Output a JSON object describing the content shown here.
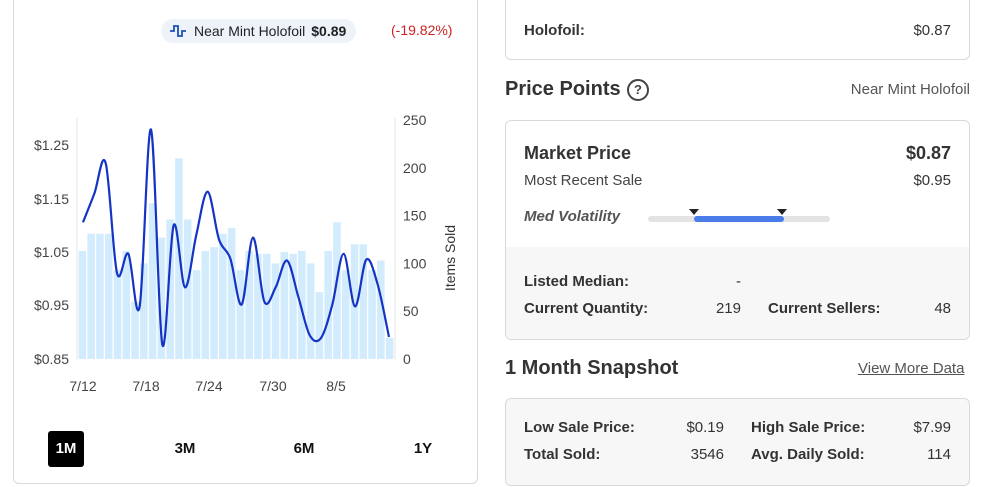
{
  "chart": {
    "legend_label": "Near Mint Holofoil",
    "legend_price": "$0.89",
    "change": "(-19.82%)",
    "range_buttons": [
      "1M",
      "3M",
      "6M",
      "1Y"
    ],
    "active_range": "1M"
  },
  "chart_data": {
    "type": "line",
    "x_tick_labels": [
      "7/12",
      "7/18",
      "7/24",
      "7/30",
      "8/5"
    ],
    "y_left_ticks": [
      "$1.25",
      "$1.15",
      "$1.05",
      "$0.95",
      "$0.85"
    ],
    "y_left_range": [
      0.85,
      1.25
    ],
    "y_right_ticks": [
      "250",
      "200",
      "150",
      "100",
      "50",
      "0"
    ],
    "y_right_range": [
      0,
      250
    ],
    "ylabel_right": "Items Sold",
    "series": [
      {
        "kind": "bar",
        "axis": "right",
        "values": [
          113,
          131,
          131,
          131,
          93,
          113,
          60,
          100,
          163,
          127,
          146,
          210,
          146,
          93,
          113,
          117,
          131,
          137,
          93,
          113,
          110,
          110,
          100,
          112,
          110,
          113,
          100,
          70,
          113,
          143,
          93,
          120,
          120,
          93,
          103,
          22
        ]
      },
      {
        "kind": "line",
        "axis": "right",
        "values": [
          143,
          173,
          205,
          90,
          110,
          55,
          240,
          15,
          140,
          75,
          130,
          175,
          125,
          105,
          57,
          127,
          60,
          75,
          103,
          65,
          25,
          22,
          57,
          110,
          55,
          104,
          78,
          23
        ]
      }
    ],
    "colors": {
      "bar": "#d3ecfd",
      "line": "#1534c4"
    }
  },
  "holofoil": {
    "label": "Holofoil:",
    "value": "$0.87"
  },
  "price_points": {
    "title": "Price Points",
    "help_icon": "?",
    "condition": "Near Mint Holofoil",
    "market_price_label": "Market Price",
    "market_price_value": "$0.87",
    "recent_sale_label": "Most Recent Sale",
    "recent_sale_value": "$0.95",
    "volatility_label": "Med Volatility",
    "listed_median_label": "Listed Median:",
    "listed_median_value": "-",
    "current_quantity_label": "Current Quantity:",
    "current_quantity_value": "219",
    "current_sellers_label": "Current Sellers:",
    "current_sellers_value": "48"
  },
  "snapshot": {
    "title": "1 Month Snapshot",
    "view_more": "View More Data",
    "low_sale_label": "Low Sale Price:",
    "low_sale_value": "$0.19",
    "high_sale_label": "High Sale Price:",
    "high_sale_value": "$7.99",
    "total_sold_label": "Total Sold:",
    "total_sold_value": "3546",
    "avg_daily_label": "Avg. Daily Sold:",
    "avg_daily_value": "114"
  }
}
